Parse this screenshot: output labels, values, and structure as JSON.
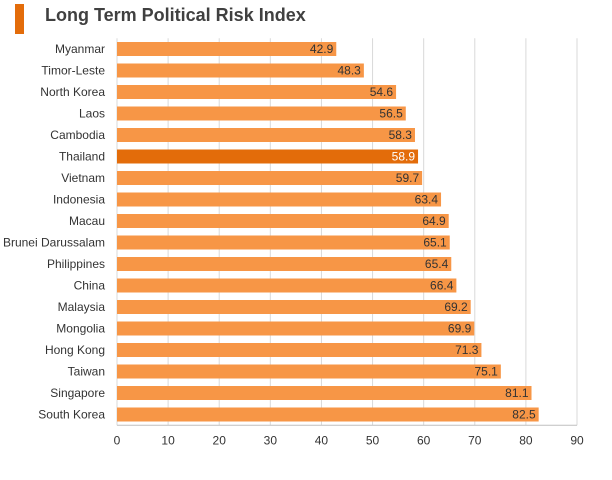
{
  "title": "Long Term Political Risk Index",
  "colors": {
    "accent": "#E36C0A",
    "bar": "#F79646",
    "highlight_bar": "#E36C0A",
    "grid": "#D9D9D9",
    "text": "#333333",
    "highlight_text": "#FFFFFF"
  },
  "chart_data": {
    "type": "bar",
    "orientation": "horizontal",
    "categories": [
      "Myanmar",
      "Timor-Leste",
      "North Korea",
      "Laos",
      "Cambodia",
      "Thailand",
      "Vietnam",
      "Indonesia",
      "Macau",
      "Brunei Darussalam",
      "Philippines",
      "China",
      "Malaysia",
      "Mongolia",
      "Hong Kong",
      "Taiwan",
      "Singapore",
      "South Korea"
    ],
    "values": [
      42.9,
      48.3,
      54.6,
      56.5,
      58.3,
      58.9,
      59.7,
      63.4,
      64.9,
      65.1,
      65.4,
      66.4,
      69.2,
      69.9,
      71.3,
      75.1,
      81.1,
      82.5
    ],
    "highlight": "Thailand",
    "xlim": [
      0,
      90
    ],
    "xticks": [
      0,
      10,
      20,
      30,
      40,
      50,
      60,
      70,
      80,
      90
    ],
    "grid": true,
    "data_labels": true,
    "legend": "none",
    "title": "Long Term Political Risk Index"
  }
}
